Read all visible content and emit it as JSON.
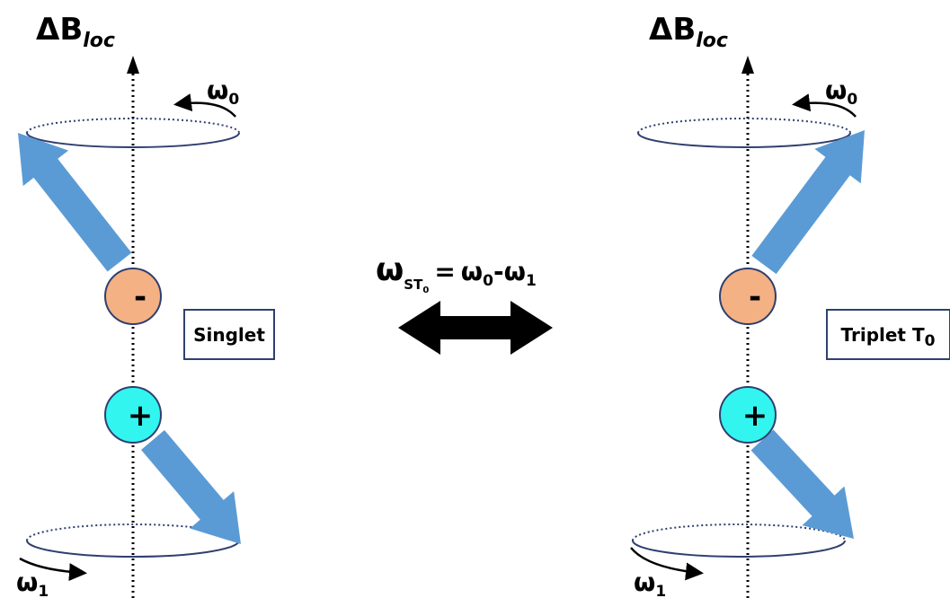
{
  "panels": [
    {
      "axis_label": {
        "symbol": "ΔB",
        "subscript": "loc"
      },
      "top_rotation": {
        "symbol": "ω",
        "subscript": "0"
      },
      "bottom_rotation": {
        "symbol": "ω",
        "subscript": "1"
      },
      "upper_charge": "-",
      "lower_charge": "+",
      "state": {
        "text": "Singlet"
      }
    },
    {
      "axis_label": {
        "symbol": "ΔB",
        "subscript": "loc"
      },
      "top_rotation": {
        "symbol": "ω",
        "subscript": "0"
      },
      "bottom_rotation": {
        "symbol": "ω",
        "subscript": "1"
      },
      "upper_charge": "-",
      "lower_charge": "+",
      "state": {
        "text": "Triplet T",
        "subscript": "0"
      }
    }
  ],
  "center": {
    "frequency": {
      "symbol": "ω",
      "subscript": "ST",
      "sub_subscript": "0",
      "equals": "=",
      "term1": "ω",
      "term1_sub": "0",
      "minus": "-",
      "term2": "ω",
      "term2_sub": "1"
    }
  }
}
